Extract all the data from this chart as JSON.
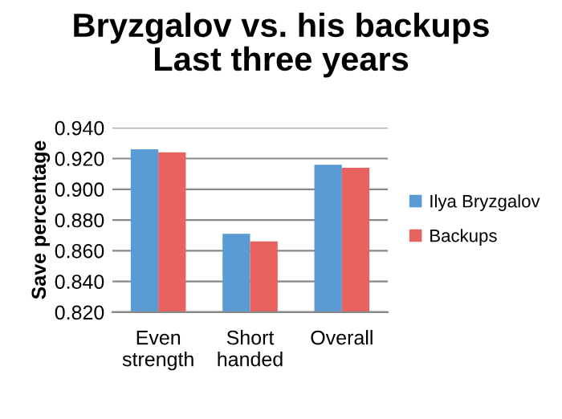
{
  "chart_data": {
    "type": "bar",
    "title": "Bryzgalov vs. his backups\nLast three years",
    "ylabel": "Save percentage",
    "categories": [
      "Even\nstrength",
      "Short\nhanded",
      "Overall"
    ],
    "series": [
      {
        "name": "Ilya Bryzgalov",
        "color": "#5b9bd5",
        "values": [
          0.926,
          0.871,
          0.916
        ]
      },
      {
        "name": "Backups",
        "color": "#e8625f",
        "values": [
          0.924,
          0.866,
          0.914
        ]
      }
    ],
    "ylim": [
      0.82,
      0.94
    ],
    "yticks": [
      {
        "value": 0.82,
        "label": "0.820"
      },
      {
        "value": 0.84,
        "label": "0.840"
      },
      {
        "value": 0.86,
        "label": "0.860"
      },
      {
        "value": 0.88,
        "label": "0.880"
      },
      {
        "value": 0.9,
        "label": "0.900"
      },
      {
        "value": 0.92,
        "label": "0.920"
      },
      {
        "value": 0.94,
        "label": "0.940"
      }
    ],
    "grid": "y",
    "legend": "right"
  }
}
